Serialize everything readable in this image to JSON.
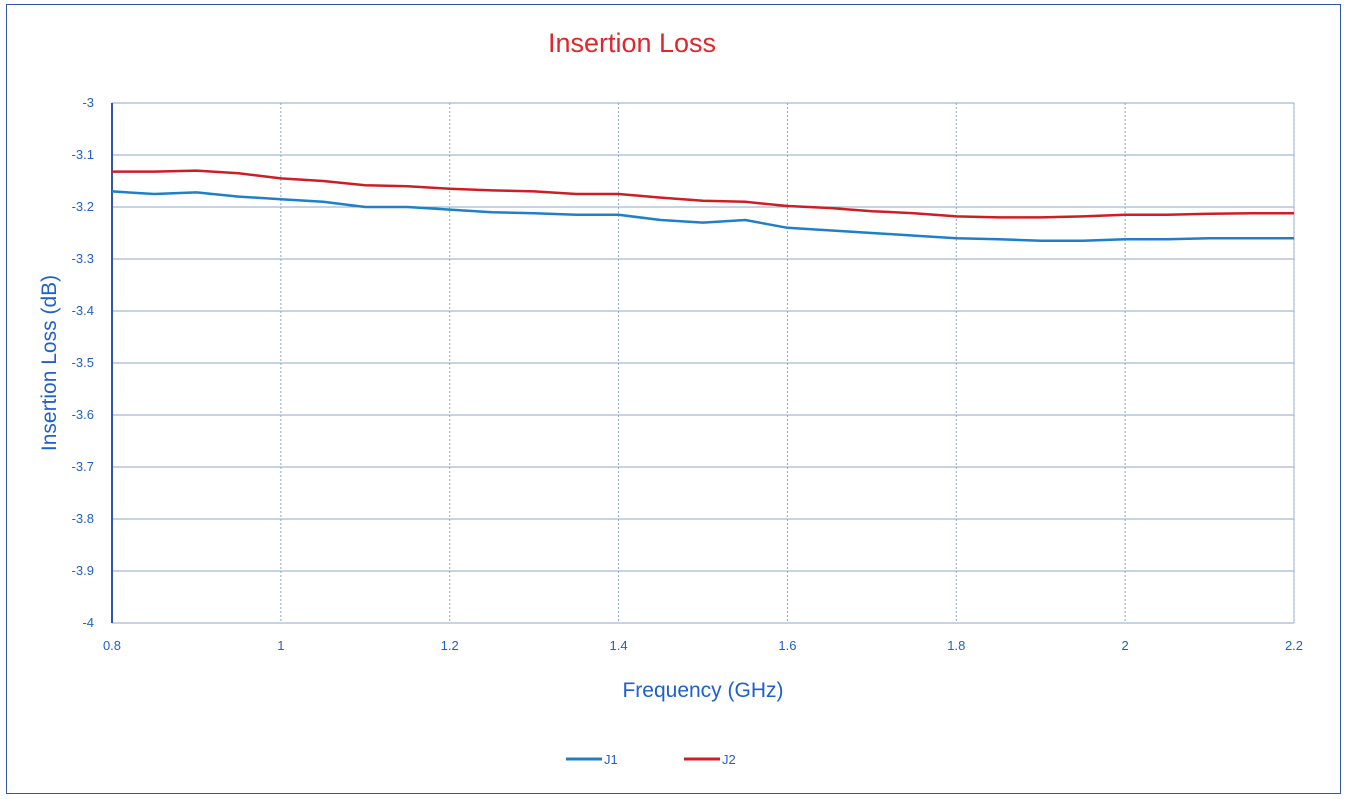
{
  "chart_data": {
    "type": "line",
    "title": "Insertion Loss",
    "xlabel": "Frequency (GHz)",
    "ylabel": "Insertion Loss (dB)",
    "xlim": [
      0.8,
      2.2
    ],
    "ylim": [
      -4,
      -3
    ],
    "x_ticks": [
      "0.8",
      "1",
      "1.2",
      "1.4",
      "1.6",
      "1.8",
      "2",
      "2.2"
    ],
    "y_ticks": [
      "-3",
      "-3.1",
      "-3.2",
      "-3.3",
      "-3.4",
      "-3.5",
      "-3.6",
      "-3.7",
      "-3.8",
      "-3.9",
      "-4"
    ],
    "grid": true,
    "legend_position": "bottom",
    "x": [
      0.8,
      0.85,
      0.9,
      0.95,
      1.0,
      1.05,
      1.1,
      1.15,
      1.2,
      1.25,
      1.3,
      1.35,
      1.4,
      1.45,
      1.5,
      1.55,
      1.6,
      1.65,
      1.7,
      1.75,
      1.8,
      1.85,
      1.9,
      1.95,
      2.0,
      2.05,
      2.1,
      2.15,
      2.2
    ],
    "series": [
      {
        "name": "J1",
        "color": "#1f7fc8",
        "values": [
          -3.17,
          -3.175,
          -3.172,
          -3.18,
          -3.185,
          -3.19,
          -3.2,
          -3.2,
          -3.205,
          -3.21,
          -3.212,
          -3.215,
          -3.215,
          -3.225,
          -3.23,
          -3.225,
          -3.24,
          -3.245,
          -3.25,
          -3.255,
          -3.26,
          -3.262,
          -3.265,
          -3.265,
          -3.262,
          -3.262,
          -3.26,
          -3.26,
          -3.26
        ]
      },
      {
        "name": "J2",
        "color": "#cc1f24",
        "values": [
          -3.132,
          -3.132,
          -3.13,
          -3.135,
          -3.145,
          -3.15,
          -3.158,
          -3.16,
          -3.165,
          -3.168,
          -3.17,
          -3.175,
          -3.175,
          -3.182,
          -3.188,
          -3.19,
          -3.198,
          -3.202,
          -3.208,
          -3.212,
          -3.218,
          -3.22,
          -3.22,
          -3.218,
          -3.215,
          -3.215,
          -3.213,
          -3.212,
          -3.212
        ]
      }
    ]
  }
}
